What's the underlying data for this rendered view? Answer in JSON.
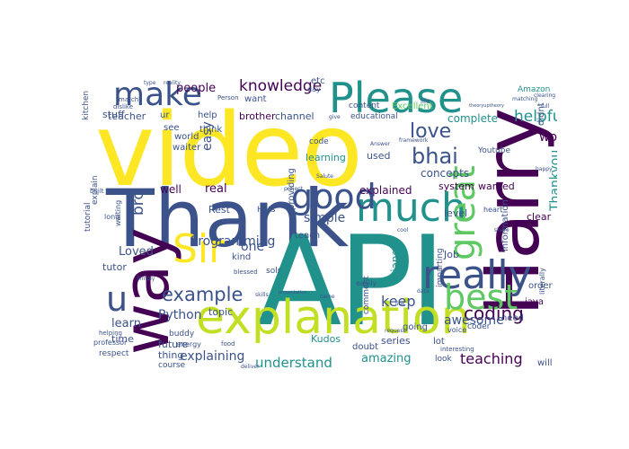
{
  "palette": {
    "purple": "#440154",
    "indigo": "#3b528b",
    "teal": "#21918c",
    "green": "#5ec962",
    "yellow": "#fde725"
  },
  "words": {
    "video": "video",
    "thank": "Thank",
    "api": "API",
    "harry": "Harry",
    "way": "way",
    "please": "Please",
    "explanation": "explanation",
    "much": "much",
    "good": "good",
    "really": "really",
    "great": "great",
    "best": "best",
    "make": "make",
    "sir": "Sir",
    "u": "u",
    "love": "love",
    "bhai": "bhai",
    "coding": "coding",
    "example": "example",
    "knowledge": "knowledge",
    "people": "people",
    "helpful": "helpful",
    "work": "work",
    "thankyou": "Thankyou",
    "concepts": "concepts",
    "teaching": "teaching",
    "programming": "Programming",
    "understand": "understand",
    "amazing": "amazing",
    "explaining": "explaining",
    "python": "Python",
    "keep": "keep",
    "awesome": "awesome",
    "simple": "simple",
    "loved": "Loved",
    "explained": "explained",
    "django": "Django",
    "topic": "topic",
    "learn": "learn",
    "bro": "bro",
    "teacher": "teacher",
    "brother": "brother",
    "channel": "channel",
    "complete": "complete",
    "easy": "easy",
    "real": "real",
    "well": "well",
    "one": "one",
    "rest": "Rest",
    "level": "level",
    "job": "Job",
    "system": "system",
    "wanted": "wanted",
    "clear": "clear",
    "java": "java",
    "future": "future",
    "series": "series",
    "thing": "thing",
    "course": "course",
    "kudos": "Kudos",
    "time": "time",
    "tutor": "tutor",
    "stuff": "stuff",
    "educational": "educational",
    "excellent": "Excellent",
    "content": "content",
    "amazon": "Amazon",
    "kitchen": "kitchen",
    "world": "world",
    "waiter": "waiter",
    "hats": "Hats",
    "learning": "learning",
    "used": "used",
    "youtube": "Youtube",
    "information": "information",
    "didnt": "didnt",
    "imparting": "imparting",
    "teach": "teach",
    "kind": "kind",
    "going": "going",
    "lot": "lot",
    "doubt": "doubt",
    "comment": "comment",
    "look": "look",
    "need": "need",
    "will": "will",
    "order": "order",
    "literally": "literally",
    "explain": "explain",
    "respect": "respect",
    "want": "want",
    "ur": "ur",
    "help": "help",
    "see": "see",
    "think": "think",
    "providing": "providing",
    "heart": "heart",
    "etc": "etc",
    "person": "Person",
    "tutorial": "tutorial",
    "long": "long",
    "waiting": "waiting",
    "helping": "helping",
    "professor": "professor",
    "buddy": "buddy",
    "energy": "energy",
    "food": "food",
    "solr": "solr",
    "blessed": "blessed",
    "code": "code",
    "day": "day",
    "coder": "coder",
    "voice": "voice",
    "interesting": "interesting",
    "easily": "easily",
    "built": "built",
    "dislike": "dislike",
    "match": "match",
    "give": "give",
    "life": "life",
    "data": "data",
    "full": "full",
    "clearing": "clearing",
    "matching": "matching",
    "theory": "theoryuptheory",
    "deliver": "deliver",
    "skills": "skills",
    "came": "came",
    "presentation": "presentation",
    "reality": "reality",
    "type": "type",
    "answer": "Answer",
    "framework": "framework",
    "simply": "Simply",
    "cool": "cool",
    "request": "request",
    "share": "share",
    "happy": "happy",
    "project": "project",
    "link": "link",
    "salute": "Salute"
  }
}
